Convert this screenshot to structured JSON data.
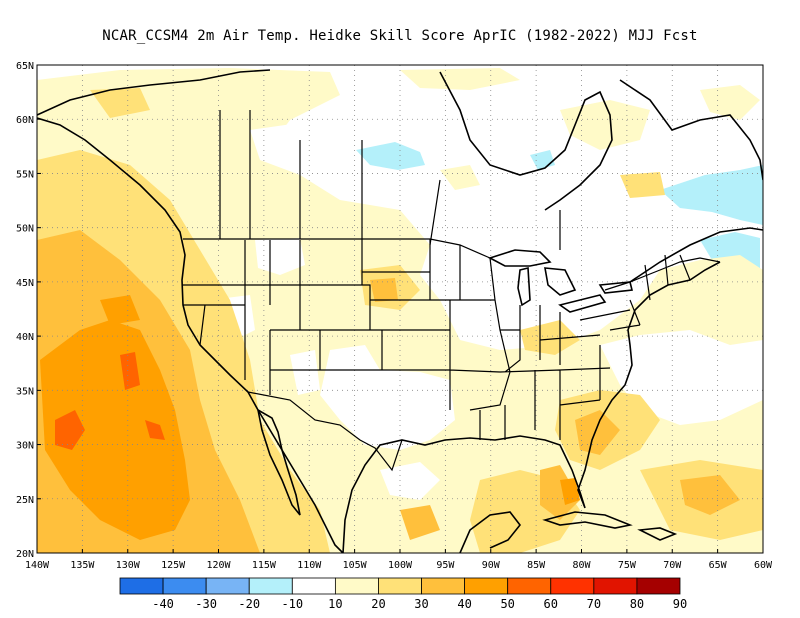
{
  "title": "NCAR_CCSM4  2m Air Temp. Heidke Skill Score AprIC (1982-2022) MJJ Fcst",
  "map": {
    "lon_range": [
      -140,
      -60
    ],
    "lat_range": [
      20,
      65
    ],
    "gridlines": "dotted",
    "lon_ticks": [
      "140W",
      "135W",
      "130W",
      "125W",
      "120W",
      "115W",
      "110W",
      "105W",
      "100W",
      "95W",
      "90W",
      "85W",
      "80W",
      "75W",
      "70W",
      "65W",
      "60W"
    ],
    "lat_ticks": [
      "65N",
      "60N",
      "55N",
      "50N",
      "45N",
      "40N",
      "35N",
      "30N",
      "25N",
      "20N"
    ]
  },
  "colorbar": {
    "labels": [
      "-40",
      "-30",
      "-20",
      "-10",
      "10",
      "20",
      "30",
      "40",
      "50",
      "60",
      "70",
      "80",
      "90"
    ],
    "colors": [
      "#1e6ee6",
      "#3c8cf0",
      "#78b4f5",
      "#b4f0fa",
      "#ffffff",
      "#fffac8",
      "#ffe178",
      "#ffc03c",
      "#ffa000",
      "#ff6400",
      "#ff3200",
      "#e11400",
      "#a50000"
    ]
  }
}
